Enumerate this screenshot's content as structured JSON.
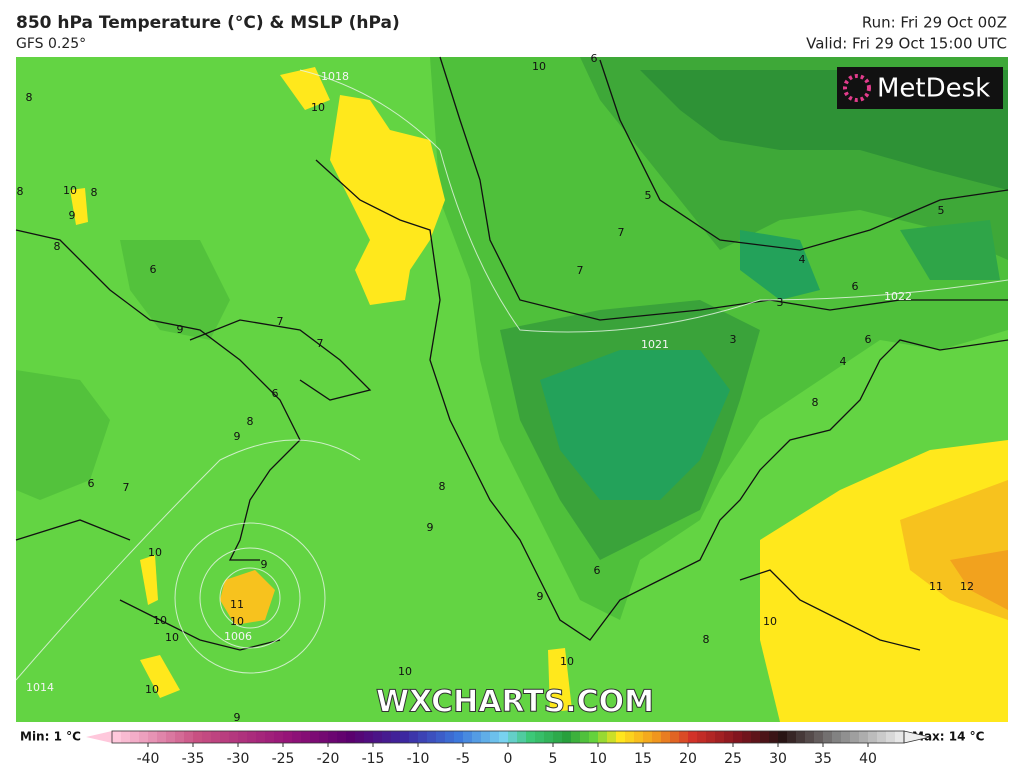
{
  "header": {
    "title": "850 hPa Temperature (°C) & MSLP (hPa)",
    "model": "GFS 0.25°",
    "run": "Run: Fri 29 Oct 00Z",
    "valid": "Valid: Fri 29 Oct 15:00 UTC"
  },
  "logo": "MetDesk",
  "watermark": "WXCHARTS.COM",
  "contour_labels": [
    "10",
    "1018",
    "10",
    "8",
    "8",
    "10",
    "8",
    "9",
    "8",
    "6",
    "9",
    "7",
    "7",
    "6",
    "8",
    "9",
    "6",
    "7",
    "8",
    "9",
    "10",
    "9",
    "11",
    "10",
    "1006",
    "10",
    "10",
    "10",
    "10",
    "10",
    "9",
    "6",
    "9",
    "8",
    "10",
    "11",
    "12",
    "1021",
    "1022",
    "3",
    "3",
    "4",
    "6",
    "5",
    "4",
    "7",
    "7",
    "6",
    "5",
    "8",
    "6",
    "1014"
  ],
  "colorbar": {
    "min_label": "Min: 1 °C",
    "max_label": "Max: 14 °C",
    "ticks": [
      -40,
      -35,
      -30,
      -25,
      -20,
      -15,
      -10,
      -5,
      0,
      5,
      10,
      15,
      20,
      25,
      30,
      35,
      40
    ]
  }
}
